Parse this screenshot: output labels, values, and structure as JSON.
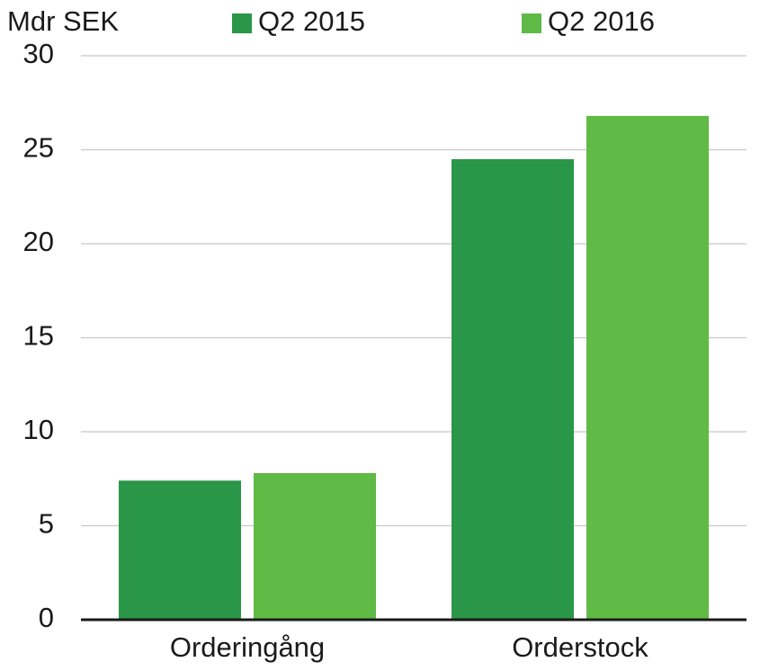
{
  "chart_data": {
    "type": "bar",
    "y_label": "Mdr SEK",
    "categories": [
      "Orderingång",
      "Orderstock"
    ],
    "series": [
      {
        "name": "Q2 2015",
        "color": "#2a9647",
        "values": [
          7.4,
          24.5
        ]
      },
      {
        "name": "Q2 2016",
        "color": "#5fba46",
        "values": [
          7.8,
          26.8
        ]
      }
    ],
    "ylim": [
      0,
      30
    ],
    "yticks": [
      0,
      5,
      10,
      15,
      20,
      25,
      30
    ],
    "grid": true
  }
}
